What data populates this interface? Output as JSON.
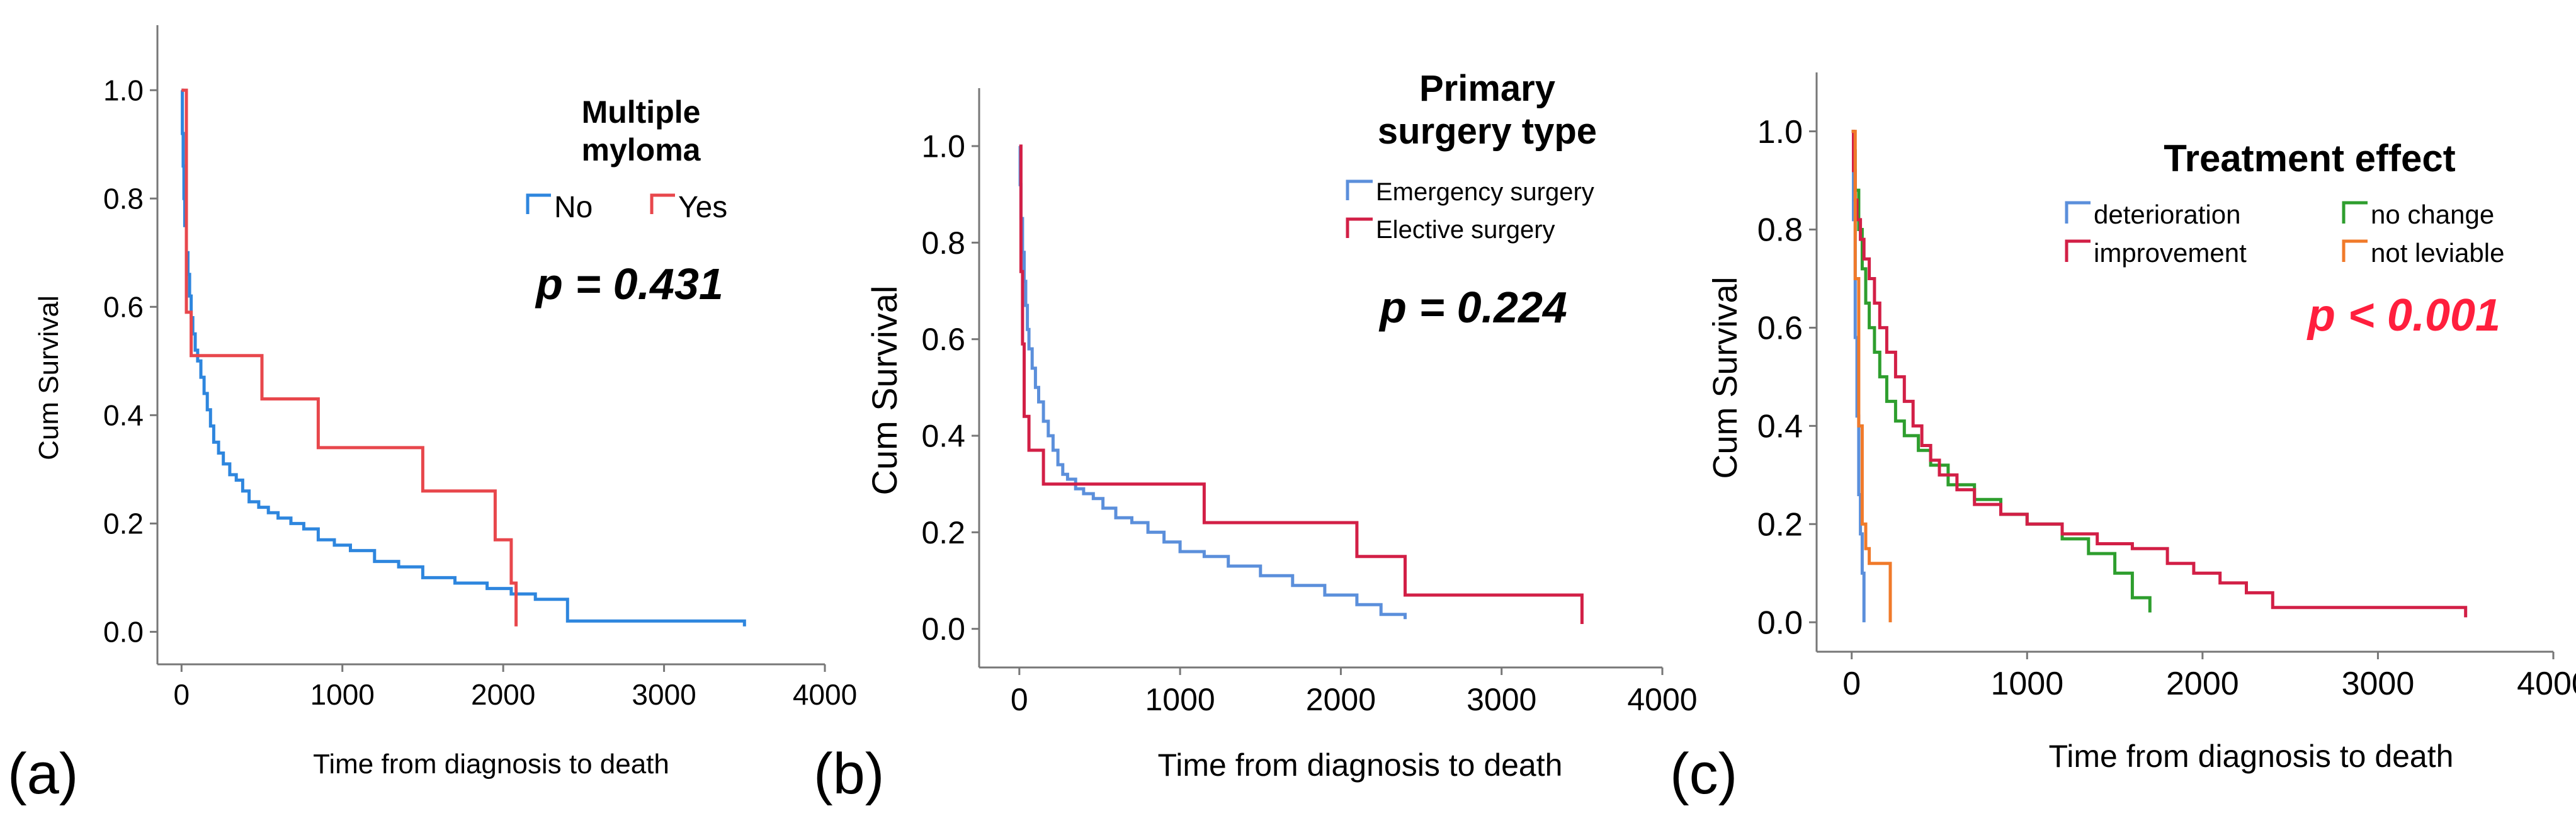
{
  "chart_data": [
    {
      "type": "line",
      "subtype": "kaplan-meier",
      "panel_label": "(a)",
      "xlabel": "Time from diagnosis to death",
      "ylabel": "Cum Survival",
      "xlim": [
        -150,
        4000
      ],
      "ylim": [
        -0.06,
        1.12
      ],
      "x_ticks": [
        0,
        1000,
        2000,
        3000,
        4000
      ],
      "x_tick_labels": [
        "0",
        "1000",
        "2000",
        "3000",
        "4000"
      ],
      "y_ticks": [
        0.0,
        0.2,
        0.4,
        0.6,
        0.8,
        1.0
      ],
      "y_tick_labels": [
        "0.0",
        "0.2",
        "0.4",
        "0.6",
        "0.8",
        "1.0"
      ],
      "legend_title": [
        "Multiple",
        "myloma"
      ],
      "legend_position": "top-right",
      "annotation": {
        "text": "p = 0.431",
        "color": "#000000"
      },
      "series": [
        {
          "name": "No",
          "color": "#2e86de",
          "x": [
            0,
            5,
            10,
            15,
            20,
            30,
            40,
            50,
            60,
            70,
            85,
            100,
            120,
            140,
            160,
            180,
            200,
            230,
            260,
            300,
            340,
            380,
            420,
            480,
            540,
            600,
            680,
            760,
            850,
            950,
            1050,
            1200,
            1350,
            1500,
            1700,
            1900,
            2050,
            2200,
            2400,
            3000,
            3500
          ],
          "y": [
            1.0,
            0.92,
            0.86,
            0.8,
            0.75,
            0.7,
            0.66,
            0.62,
            0.58,
            0.55,
            0.52,
            0.5,
            0.47,
            0.44,
            0.41,
            0.38,
            0.35,
            0.33,
            0.31,
            0.29,
            0.28,
            0.26,
            0.24,
            0.23,
            0.22,
            0.21,
            0.2,
            0.19,
            0.17,
            0.16,
            0.15,
            0.13,
            0.12,
            0.1,
            0.09,
            0.08,
            0.07,
            0.06,
            0.02,
            0.02,
            0.01
          ]
        },
        {
          "name": "Yes",
          "color": "#e8474c",
          "x": [
            0,
            30,
            60,
            500,
            850,
            1500,
            1950,
            2050,
            2080
          ],
          "y": [
            1.0,
            0.59,
            0.51,
            0.43,
            0.34,
            0.26,
            0.17,
            0.09,
            0.01
          ]
        }
      ]
    },
    {
      "type": "line",
      "subtype": "kaplan-meier",
      "panel_label": "(b)",
      "xlabel": "Time from diagnosis to death",
      "ylabel": "Cum Survival",
      "xlim": [
        -250,
        4000
      ],
      "ylim": [
        -0.08,
        1.12
      ],
      "x_ticks": [
        0,
        1000,
        2000,
        3000,
        4000
      ],
      "x_tick_labels": [
        "0",
        "1000",
        "2000",
        "3000",
        "4000"
      ],
      "y_ticks": [
        0.0,
        0.2,
        0.4,
        0.6,
        0.8,
        1.0
      ],
      "y_tick_labels": [
        "0.0",
        "0.2",
        "0.4",
        "0.6",
        "0.8",
        "1.0"
      ],
      "legend_title": [
        "Primary",
        "surgery type"
      ],
      "legend_position": "top-right",
      "annotation": {
        "text": "p = 0.224",
        "color": "#000000"
      },
      "series": [
        {
          "name": "Emergency surgery",
          "color": "#5b8fdb",
          "x": [
            0,
            5,
            10,
            20,
            30,
            40,
            50,
            60,
            80,
            100,
            120,
            150,
            180,
            210,
            240,
            270,
            300,
            350,
            400,
            460,
            520,
            600,
            700,
            800,
            900,
            1000,
            1150,
            1300,
            1500,
            1700,
            1900,
            2100,
            2250,
            2400
          ],
          "y": [
            1.0,
            0.92,
            0.85,
            0.78,
            0.72,
            0.67,
            0.62,
            0.58,
            0.54,
            0.5,
            0.47,
            0.43,
            0.4,
            0.37,
            0.34,
            0.32,
            0.31,
            0.29,
            0.28,
            0.27,
            0.25,
            0.23,
            0.22,
            0.2,
            0.18,
            0.16,
            0.15,
            0.13,
            0.11,
            0.09,
            0.07,
            0.05,
            0.03,
            0.02
          ]
        },
        {
          "name": "Elective surgery",
          "color": "#d21f46",
          "x": [
            0,
            10,
            20,
            30,
            60,
            150,
            1150,
            2100,
            2400,
            3500
          ],
          "y": [
            1.0,
            0.74,
            0.59,
            0.44,
            0.37,
            0.3,
            0.22,
            0.15,
            0.07,
            0.01
          ]
        }
      ]
    },
    {
      "type": "line",
      "subtype": "kaplan-meier",
      "panel_label": "(c)",
      "xlabel": "Time from diagnosis to death",
      "ylabel": "Cum Survival",
      "xlim": [
        -200,
        4000
      ],
      "ylim": [
        -0.06,
        1.12
      ],
      "x_ticks": [
        0,
        1000,
        2000,
        3000,
        4000
      ],
      "x_tick_labels": [
        "0",
        "1000",
        "2000",
        "3000",
        "4000"
      ],
      "y_ticks": [
        0.0,
        0.2,
        0.4,
        0.6,
        0.8,
        1.0
      ],
      "y_tick_labels": [
        "0.0",
        "0.2",
        "0.4",
        "0.6",
        "0.8",
        "1.0"
      ],
      "legend_title": [
        "Treatment effect"
      ],
      "legend_position": "top-right",
      "annotation": {
        "text": "p < 0.001",
        "color": "#ff1f3d"
      },
      "series": [
        {
          "name": "deterioration",
          "color": "#5b8fdb",
          "x": [
            0,
            10,
            20,
            30,
            40,
            50,
            60,
            70
          ],
          "y": [
            1.0,
            0.82,
            0.58,
            0.42,
            0.26,
            0.18,
            0.1,
            0.0
          ]
        },
        {
          "name": "no change",
          "color": "#2e9e2e",
          "x": [
            0,
            10,
            20,
            40,
            60,
            80,
            100,
            130,
            160,
            200,
            250,
            300,
            380,
            450,
            550,
            700,
            850,
            1000,
            1200,
            1350,
            1500,
            1600,
            1700
          ],
          "y": [
            1.0,
            0.96,
            0.88,
            0.8,
            0.72,
            0.65,
            0.6,
            0.55,
            0.5,
            0.45,
            0.41,
            0.38,
            0.35,
            0.32,
            0.28,
            0.25,
            0.22,
            0.2,
            0.17,
            0.14,
            0.1,
            0.05,
            0.02
          ]
        },
        {
          "name": "improvement",
          "color": "#d21f46",
          "x": [
            0,
            10,
            20,
            30,
            50,
            70,
            100,
            130,
            160,
            200,
            250,
            300,
            350,
            400,
            450,
            500,
            600,
            700,
            850,
            1000,
            1200,
            1400,
            1600,
            1800,
            1950,
            2100,
            2250,
            2400,
            3500
          ],
          "y": [
            1.0,
            0.92,
            0.86,
            0.82,
            0.78,
            0.74,
            0.7,
            0.65,
            0.6,
            0.55,
            0.5,
            0.45,
            0.4,
            0.36,
            0.33,
            0.3,
            0.27,
            0.24,
            0.22,
            0.2,
            0.18,
            0.16,
            0.15,
            0.12,
            0.1,
            0.08,
            0.06,
            0.03,
            0.01
          ]
        },
        {
          "name": "not leviable",
          "color": "#f07a2a",
          "x": [
            0,
            20,
            40,
            60,
            80,
            100,
            220
          ],
          "y": [
            1.0,
            0.7,
            0.4,
            0.2,
            0.15,
            0.12,
            0.0
          ]
        }
      ]
    }
  ]
}
